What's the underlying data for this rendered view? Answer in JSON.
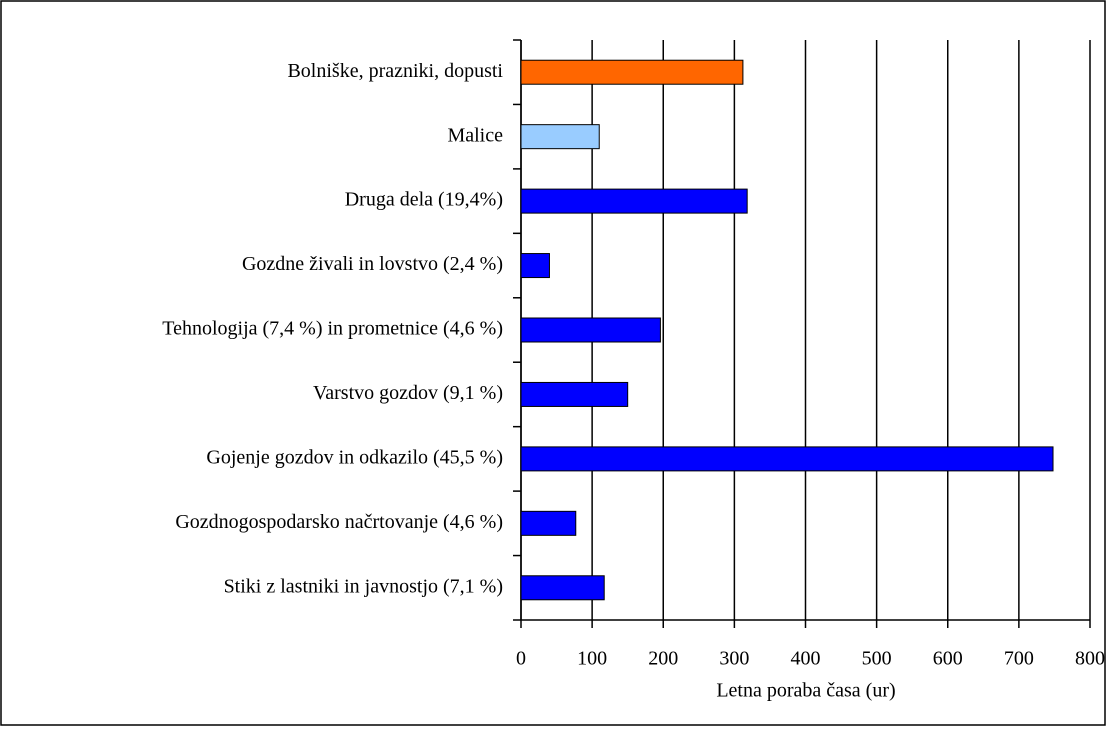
{
  "chart_data": {
    "type": "bar",
    "orientation": "horizontal",
    "x_label": "Letna poraba časa (ur)",
    "categories": [
      "Bolniške, prazniki, dopusti",
      "Malice",
      "Druga dela (19,4%)",
      "Gozdne živali in lovstvo (2,4 %)",
      "Tehnologija (7,4 %) in prometnice (4,6 %)",
      "Varstvo gozdov (9,1 %)",
      "Gojenje gozdov in odkazilo (45,5 %)",
      "Gozdnogospodarsko načrtovanje (4,6 %)",
      "Stiki z lastniki in javnostjo (7,1 %)"
    ],
    "values": [
      312,
      110,
      318,
      40,
      196,
      150,
      748,
      77,
      117
    ],
    "colors": [
      "#ff6600",
      "#99ccff",
      "#0000ff",
      "#0000ff",
      "#0000ff",
      "#0000ff",
      "#0000ff",
      "#0000ff",
      "#0000ff"
    ],
    "xlim": [
      0,
      800
    ],
    "xticks": [
      0,
      100,
      200,
      300,
      400,
      500,
      600,
      700,
      800
    ],
    "grid": true
  }
}
